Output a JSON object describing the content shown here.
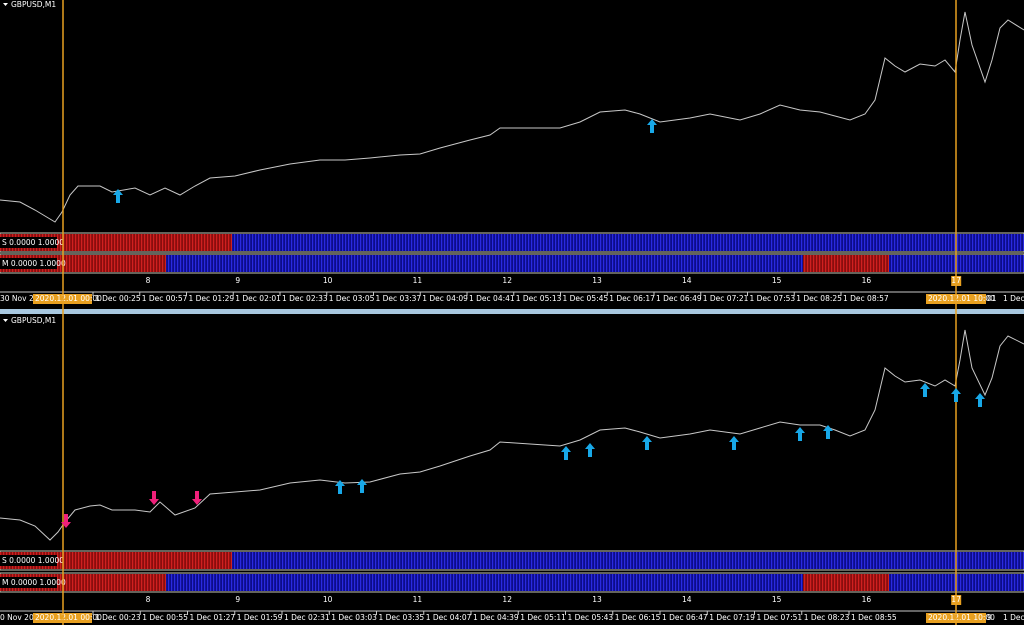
{
  "panes": [
    {
      "title": "GBPUSD,M1",
      "indicators": [
        "S 0.0000 1.0000",
        "M 0.0000 1.0000"
      ],
      "bar_numbers": [
        8,
        9,
        10,
        11,
        12,
        13,
        14,
        15,
        16,
        17
      ],
      "time_axis": {
        "left": "30 Nov 20",
        "left_highlight": "2020.12.01 00:00",
        "labels": [
          "1 Dec 00:25",
          "1 Dec 00:57",
          "1 Dec 01:29",
          "1 Dec 02:01",
          "1 Dec 02:33",
          "1 Dec 03:05",
          "1 Dec 03:37",
          "1 Dec 04:09",
          "1 Dec 04:41",
          "1 Dec 05:13",
          "1 Dec 05:45",
          "1 Dec 06:17",
          "1 Dec 06:49",
          "1 Dec 07:21",
          "1 Dec 07:53",
          "1 Dec 08:25",
          "1 Dec 08:57"
        ],
        "right_highlight": "2020.12.01 10:00",
        "right": "01",
        "last": "1 Dec"
      }
    },
    {
      "title": "GBPUSD,M1",
      "indicators": [
        "S 0.0000 1.0000",
        "M 0.0000 1.0000"
      ],
      "bar_numbers": [
        8,
        9,
        10,
        11,
        12,
        13,
        14,
        15,
        16,
        17
      ],
      "time_axis": {
        "left": "0 Nov 20",
        "left_highlight": "2020.12.01 00:00",
        "labels": [
          "1 Dec 00:23",
          "1 Dec 00:55",
          "1 Dec 01:27",
          "1 Dec 01:59",
          "1 Dec 02:31",
          "1 Dec 03:03",
          "1 Dec 03:35",
          "1 Dec 04:07",
          "1 Dec 04:39",
          "1 Dec 05:11",
          "1 Dec 05:43",
          "1 Dec 06:15",
          "1 Dec 06:47",
          "1 Dec 07:19",
          "1 Dec 07:51",
          "1 Dec 08:23",
          "1 Dec 08:55"
        ],
        "right_highlight": "2020.12.01 10:00",
        "right": "9",
        "last": "1 Dec"
      }
    }
  ]
}
